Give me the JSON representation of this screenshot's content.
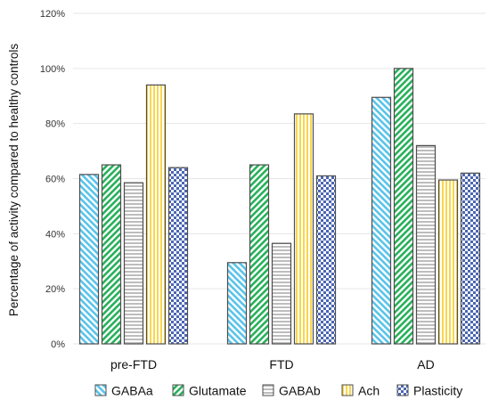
{
  "chart_data": {
    "type": "bar",
    "title": "",
    "xlabel": "",
    "ylabel": "Percentage of activity compared to healthy controls",
    "ylim": [
      0,
      120
    ],
    "yticks": [
      0,
      20,
      40,
      60,
      80,
      100,
      120
    ],
    "ytick_labels": [
      "0%",
      "20%",
      "40%",
      "60%",
      "80%",
      "100%",
      "120%"
    ],
    "grid": "horizontal",
    "legend_position": "bottom",
    "categories": [
      "pre-FTD",
      "FTD",
      "AD"
    ],
    "series": [
      {
        "name": "GABAa",
        "values": [
          61.5,
          29.5,
          89.5
        ],
        "color": "#59c3ea",
        "pattern": "diagonal-left"
      },
      {
        "name": "Glutamate",
        "values": [
          65,
          65,
          100
        ],
        "color": "#27b05a",
        "pattern": "diagonal-right"
      },
      {
        "name": "GABAb",
        "values": [
          58.5,
          36.5,
          72
        ],
        "color": "#bdbdbd",
        "pattern": "horizontal-lines"
      },
      {
        "name": "Ach",
        "values": [
          94,
          83.5,
          59.5
        ],
        "color": "#f9d64a",
        "pattern": "vertical-lines"
      },
      {
        "name": "Plasticity",
        "values": [
          64,
          61,
          62
        ],
        "color": "#4a66b3",
        "pattern": "checker"
      }
    ]
  }
}
